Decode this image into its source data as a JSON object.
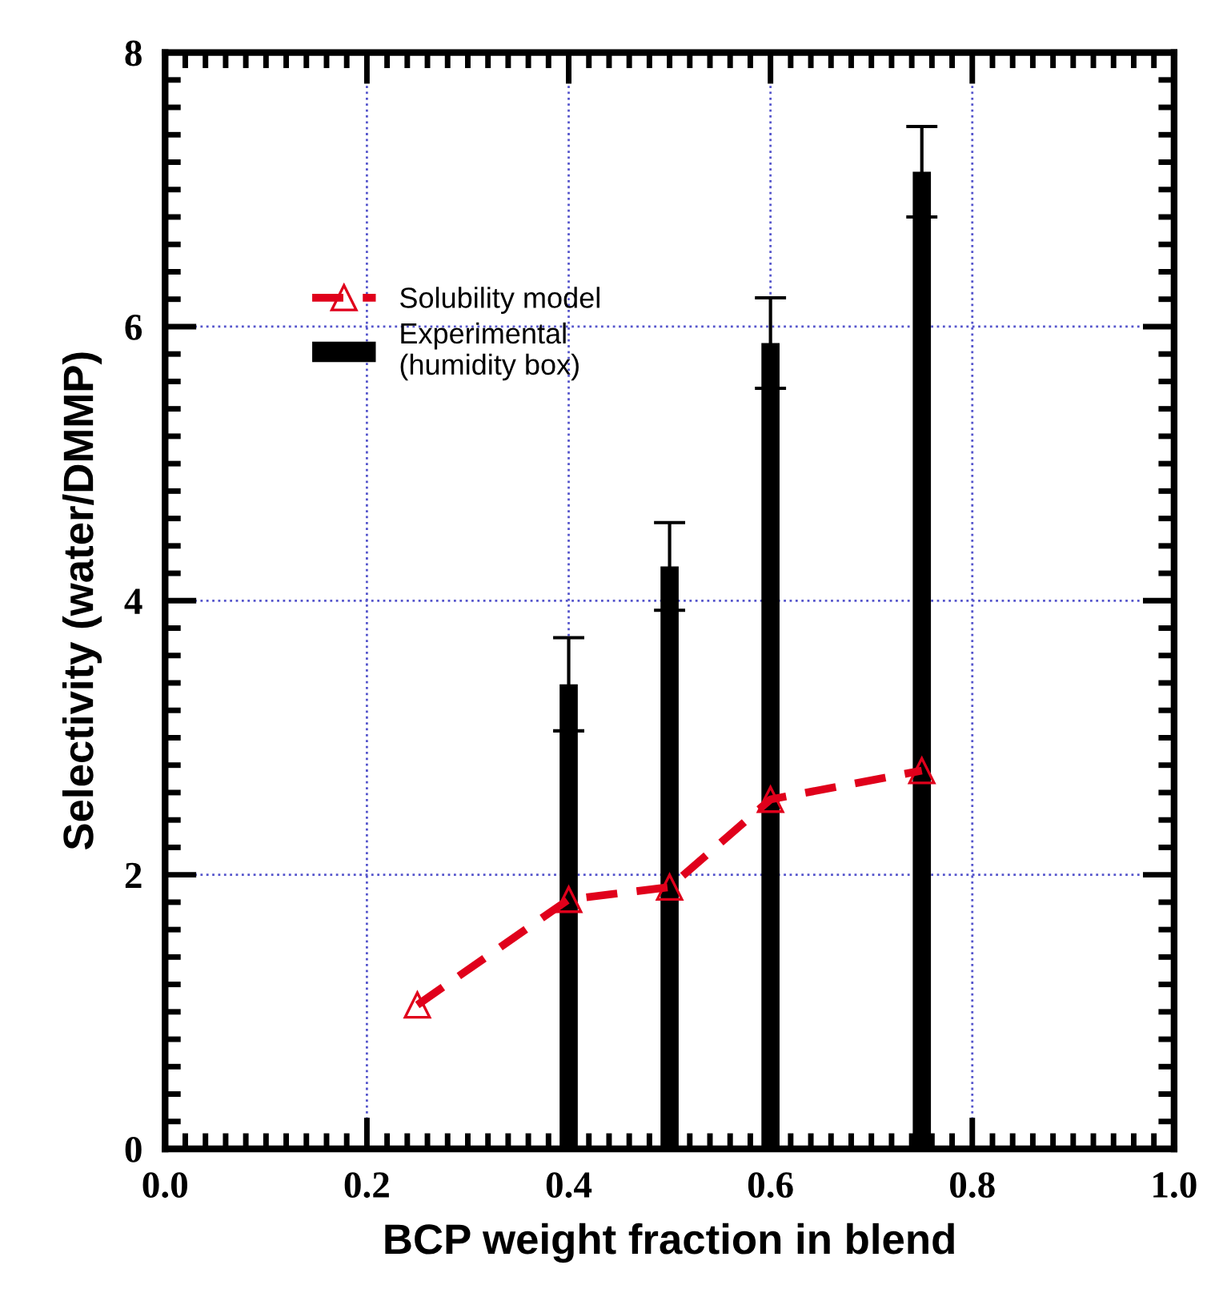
{
  "chart_data": {
    "type": "bar",
    "xlabel": "BCP weight fraction in blend",
    "ylabel": "Selectivity (water/DMMP)",
    "xlim": [
      0.0,
      1.0
    ],
    "xticks": [
      {
        "value": 0,
        "label": "0.0"
      },
      0.2,
      0.4,
      0.6,
      0.8,
      {
        "value": 1,
        "label": "1.0"
      }
    ],
    "ylim": [
      0,
      8
    ],
    "yticks": [
      0,
      2,
      4,
      6,
      8
    ],
    "grid": true,
    "legend": "top left",
    "series": [
      {
        "name": "Solubility model",
        "type": "line",
        "color": "#e0001b",
        "marker": "triangle",
        "line_style": "dashed",
        "x": [
          0.25,
          0.4,
          0.5,
          0.6,
          0.75
        ],
        "values": [
          1.05,
          1.82,
          1.91,
          2.55,
          2.76
        ]
      },
      {
        "name": "Experimental\n(humidity box)",
        "color": "#000000",
        "x": [
          0.4,
          0.5,
          0.6,
          0.75
        ],
        "values": [
          3.39,
          4.25,
          5.88,
          7.13
        ],
        "errors": [
          0.34,
          0.32,
          0.33,
          0.33
        ]
      }
    ]
  }
}
